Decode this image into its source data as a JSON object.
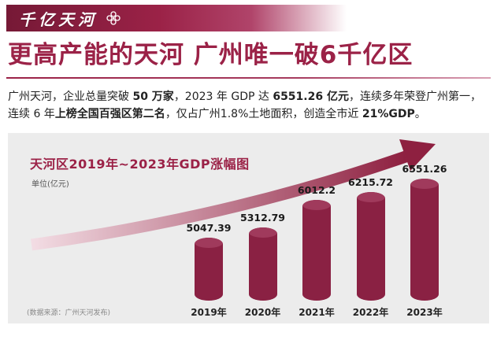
{
  "theme": {
    "accent": "#9b2247",
    "panel": "#ececec"
  },
  "banner": {
    "title": "千亿天河"
  },
  "headline": {
    "text": "更高产能的天河 广州唯一破6千亿区"
  },
  "intro": {
    "segments": [
      {
        "text": "广州天河，企业总量突破 ",
        "bold": false
      },
      {
        "text": "50 万家",
        "bold": true
      },
      {
        "text": "，2023 年 GDP 达 ",
        "bold": false
      },
      {
        "text": "6551.26 亿元",
        "bold": true
      },
      {
        "text": "，连续多年荣登广州第一，连续 6 年",
        "bold": false
      },
      {
        "text": "上榜全国百强区第二名",
        "bold": true
      },
      {
        "text": "，仅占广州1.8%土地面积，创造全市近 ",
        "bold": false
      },
      {
        "text": "21%GDP",
        "bold": true
      },
      {
        "text": "。",
        "bold": false
      }
    ]
  },
  "chart_data": {
    "type": "bar",
    "title": "天河区2019年~2023年GDP涨幅图",
    "unit_label": "单位(亿元)",
    "categories": [
      "2019年",
      "2020年",
      "2021年",
      "2022年",
      "2023年"
    ],
    "values": [
      5047.39,
      5312.79,
      6012.2,
      6215.72,
      6551.26
    ],
    "labels": [
      "5047.39",
      "5312.79",
      "6012.2",
      "6215.72",
      "6551.26"
    ],
    "ylim": [
      5000,
      6700
    ],
    "legend": "none",
    "grid": false,
    "source": "(数据来源：广州天河发布)",
    "bar_color": "#8a2143",
    "bar_top_color": "#a03a5c",
    "arrow_colors": [
      "#f3dde4",
      "#8e2040"
    ]
  }
}
